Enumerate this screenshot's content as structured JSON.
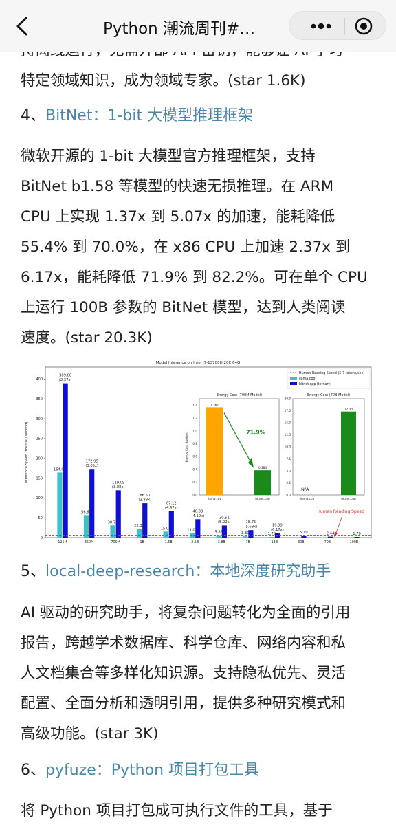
{
  "topbar": {
    "title": "Python 潮流周刊#…"
  },
  "article": {
    "intro_line1": "持离线运行，无需开部 API 密钥，能够让 AI 学习",
    "intro_line2": "特定领域知识，成为领域专家。(star 1.6K)",
    "items": [
      {
        "num": "4、",
        "link": "BitNet：1-bit 大模型推理框架",
        "lines": [
          "微软开源的 1-bit 大模型官方推理框架，支持",
          "BitNet b1.58 等模型的快速无损推理。在 ARM",
          "CPU 上实现 1.37x 到 5.07x 的加速，能耗降低",
          "55.4% 到 70.0%，在 x86 CPU 上加速 2.37x 到",
          "6.17x，能耗降低 71.9% 到 82.2%。可在单个 CPU",
          "上运行 100B 参数的 BitNet 模型，达到人类阅读",
          "速度。(star 20.3K)"
        ]
      },
      {
        "num": "5、",
        "link": "local-deep-research：本地深度研究助手",
        "lines": [
          "AI 驱动的研究助手，将复杂问题转化为全面的引用",
          "报告，跨越学术数据库、科学仓库、网络内容和私",
          "人文档集合等多样化知识源。支持隐私优先、灵活",
          "配置、全面分析和透明引用，提供多种研究模式和",
          "高级功能。(star 3K)"
        ]
      },
      {
        "num": "6、",
        "link": "pyfuze：Python 项目打包工具",
        "lines": [
          "将 Python 项目打包成可执行文件的工具，基于"
        ]
      }
    ]
  },
  "chart_data": [
    {
      "type": "bar",
      "title": "Model Inference on Intel i7-13700H 20C 64G",
      "ylabel": "Inference Speed (tokens / second)",
      "xlabel": "",
      "ylim": [
        0,
        430
      ],
      "yticks": [
        0,
        50,
        100,
        150,
        200,
        250,
        300,
        350,
        400
      ],
      "categories": [
        "125M",
        "350M",
        "700M",
        "1B",
        "1.5B",
        "2.5B",
        "3.8B",
        "7B",
        "13B",
        "30B",
        "70B",
        "100B"
      ],
      "series": [
        {
          "name": "llama.cpp",
          "color": "#3fc1c9",
          "values": [
            164.04,
            56.67,
            30.73,
            22.31,
            15.02,
            11.07,
            5.85,
            3.3,
            1.78,
            null,
            null,
            null
          ],
          "labels": [
            "164.04",
            "56.67",
            "30.73",
            "22.31",
            "15.02",
            "11.07",
            "5.85",
            "3.30",
            "1.78",
            "",
            "",
            ""
          ]
        },
        {
          "name": "bitnet.cpp (ternary)",
          "color": "#1010d0",
          "values": [
            389.08,
            172.95,
            119.08,
            86.5,
            67.12,
            46.33,
            30.51,
            18.75,
            10.99,
            5.1,
            2.44,
            1.7
          ],
          "labels": [
            "389.08\n(2.37x)",
            "172.95\n(3.05x)",
            "119.08\n(3.88x)",
            "86.50\n(3.88x)",
            "67.12\n(4.47x)",
            "46.33\n(4.19x)",
            "30.51\n(5.22x)",
            "18.75\n(5.68x)",
            "10.99\n(6.17x)",
            "5.10",
            "2.44",
            "1.70"
          ]
        }
      ],
      "reference_line": {
        "name": "Human Reading Speed (5-7 tokens/sec)",
        "value": 6,
        "color": "#d03030",
        "annotation": "Human Reading Speed"
      },
      "legend": "top-right"
    },
    {
      "type": "bar",
      "title": "Energy Cost (700M Model)",
      "ylabel": "Energy Cost (J/token)",
      "ylim": [
        0,
        1.5
      ],
      "yticks": [
        "0.0",
        "0.2",
        "0.4",
        "0.6",
        "0.8",
        "1.0",
        "1.2",
        "1.4"
      ],
      "categories": [
        "llama.cpp",
        "bitnet.cpp"
      ],
      "values": [
        1.367,
        0.384
      ],
      "labels": [
        "1.367",
        "0.384"
      ],
      "colors": [
        "#ffa500",
        "#1a8a1a"
      ],
      "annotation": "71.9%"
    },
    {
      "type": "bar",
      "title": "Energy Cost (70B Model)",
      "ylim": [
        0,
        20
      ],
      "yticks": [
        "0.0",
        "2.5",
        "5.0",
        "7.5",
        "10.0",
        "12.5",
        "15.0",
        "17.5",
        "20.0"
      ],
      "categories": [
        "llama.cpp",
        "bitnet.cpp"
      ],
      "values": [
        null,
        17.33
      ],
      "labels": [
        "N/A",
        "17.33"
      ],
      "colors": [
        "#ffa500",
        "#1a8a1a"
      ]
    }
  ]
}
